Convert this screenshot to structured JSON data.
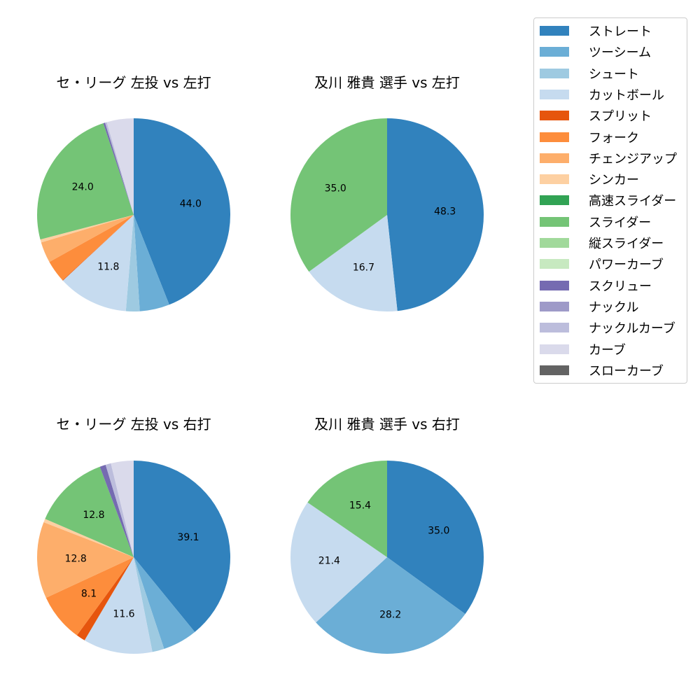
{
  "legend": {
    "items": [
      {
        "label": "ストレート",
        "color": "#3182bd"
      },
      {
        "label": "ツーシーム",
        "color": "#6baed6"
      },
      {
        "label": "シュート",
        "color": "#9ecae1"
      },
      {
        "label": "カットボール",
        "color": "#c6dbef"
      },
      {
        "label": "スプリット",
        "color": "#e6550d"
      },
      {
        "label": "フォーク",
        "color": "#fd8d3c"
      },
      {
        "label": "チェンジアップ",
        "color": "#fdae6b"
      },
      {
        "label": "シンカー",
        "color": "#fdd0a2"
      },
      {
        "label": "高速スライダー",
        "color": "#31a354"
      },
      {
        "label": "スライダー",
        "color": "#74c476"
      },
      {
        "label": "縦スライダー",
        "color": "#a1d99b"
      },
      {
        "label": "パワーカーブ",
        "color": "#c7e9c0"
      },
      {
        "label": "スクリュー",
        "color": "#756bb1"
      },
      {
        "label": "ナックル",
        "color": "#9e9ac8"
      },
      {
        "label": "ナックルカーブ",
        "color": "#bcbddc"
      },
      {
        "label": "カーブ",
        "color": "#dadaeb"
      },
      {
        "label": "スローカーブ",
        "color": "#636363"
      }
    ]
  },
  "chart_data": [
    {
      "type": "pie",
      "title": "セ・リーグ 左投 vs 左打",
      "categories": [
        "ストレート",
        "ツーシーム",
        "シュート",
        "カットボール",
        "スプリット",
        "フォーク",
        "チェンジアップ",
        "シンカー",
        "スライダー",
        "スクリュー",
        "ナックルカーブ",
        "カーブ"
      ],
      "values": [
        44.0,
        5.0,
        2.3,
        11.8,
        0.1,
        3.7,
        3.5,
        0.5,
        24.0,
        0.3,
        0.3,
        4.5
      ],
      "labels_shown": [
        "44.0",
        "",
        "",
        "11.8",
        "",
        "",
        "",
        "",
        "24.0",
        "",
        "",
        ""
      ]
    },
    {
      "type": "pie",
      "title": "及川 雅貴 選手 vs 左打",
      "categories": [
        "ストレート",
        "カットボール",
        "スライダー"
      ],
      "values": [
        48.3,
        16.7,
        35.0
      ],
      "labels_shown": [
        "48.3",
        "16.7",
        "35.0"
      ]
    },
    {
      "type": "pie",
      "title": "セ・リーグ 左投 vs 右打",
      "categories": [
        "ストレート",
        "ツーシーム",
        "シュート",
        "カットボール",
        "スプリット",
        "フォーク",
        "チェンジアップ",
        "シンカー",
        "スライダー",
        "スクリュー",
        "ナックルカーブ",
        "カーブ"
      ],
      "values": [
        39.1,
        5.8,
        2.0,
        11.6,
        1.5,
        8.1,
        12.8,
        0.6,
        12.8,
        1.0,
        0.9,
        3.8
      ],
      "labels_shown": [
        "39.1",
        "",
        "",
        "11.6",
        "",
        "8.1",
        "12.8",
        "",
        "12.8",
        "",
        "",
        ""
      ]
    },
    {
      "type": "pie",
      "title": "及川 雅貴 選手 vs 右打",
      "categories": [
        "ストレート",
        "ツーシーム",
        "カットボール",
        "スライダー"
      ],
      "values": [
        35.0,
        28.2,
        21.4,
        15.4
      ],
      "labels_shown": [
        "35.0",
        "28.2",
        "21.4",
        "15.4"
      ]
    }
  ]
}
